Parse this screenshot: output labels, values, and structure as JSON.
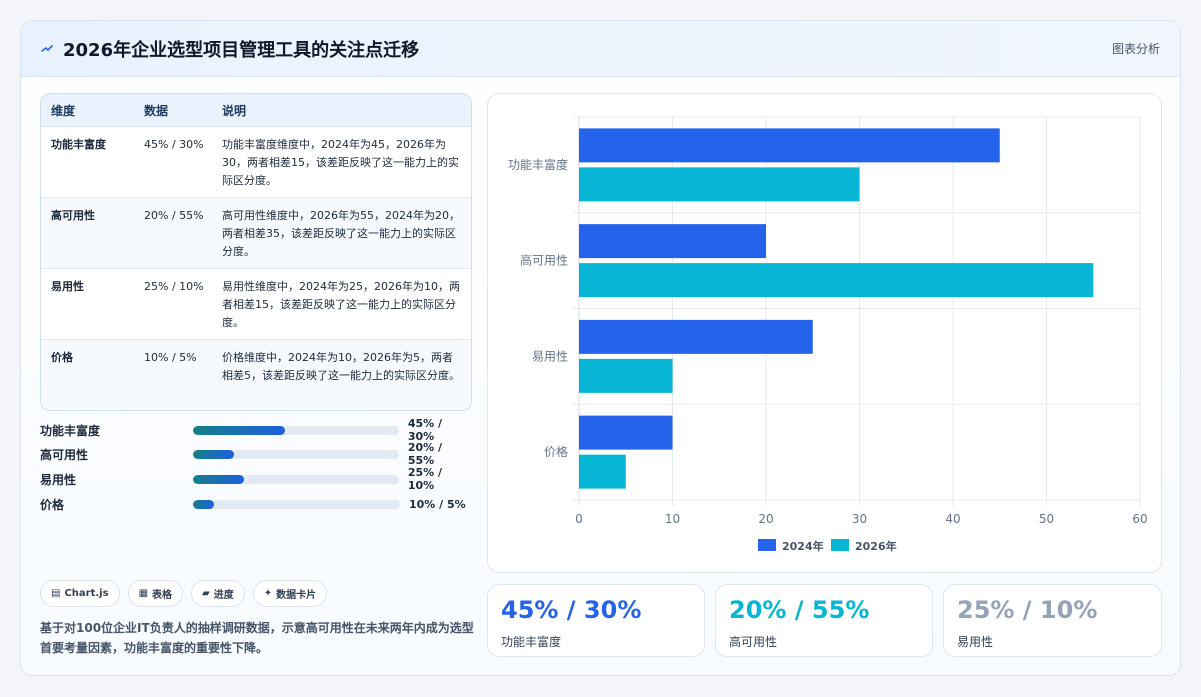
{
  "header": {
    "title": "2026年企业选型项目管理工具的关注点迁移",
    "tag": "图表分析",
    "icon": "trend-line-icon"
  },
  "table": {
    "columns": [
      "维度",
      "数据",
      "说明"
    ],
    "rows": [
      {
        "dim": "功能丰富度",
        "data": "45% / 30%",
        "desc": "功能丰富度维度中，2024年为45，2026年为30，两者相差15，该差距反映了这一能力上的实际区分度。"
      },
      {
        "dim": "高可用性",
        "data": "20% / 55%",
        "desc": "高可用性维度中，2026年为55，2024年为20，两者相差35，该差距反映了这一能力上的实际区分度。"
      },
      {
        "dim": "易用性",
        "data": "25% / 10%",
        "desc": "易用性维度中，2024年为25，2026年为10，两者相差15，该差距反映了这一能力上的实际区分度。"
      },
      {
        "dim": "价格",
        "data": "10% / 5%",
        "desc": "价格维度中，2024年为10，2026年为5，两者相差5，该差距反映了这一能力上的实际区分度。"
      }
    ]
  },
  "progress": [
    {
      "label": "功能丰富度",
      "value_text": "45% / 30%",
      "fill": 0.45
    },
    {
      "label": "高可用性",
      "value_text": "20% / 55%",
      "fill": 0.2
    },
    {
      "label": "易用性",
      "value_text": "25% / 10%",
      "fill": 0.25
    },
    {
      "label": "价格",
      "value_text": "10% / 5%",
      "fill": 0.1
    }
  ],
  "chips": [
    "Chart.js",
    "表格",
    "进度",
    "数据卡片"
  ],
  "note": "基于对100位企业IT负责人的抽样调研数据，示意高可用性在未来两年内成为选型首要考量因素，功能丰富度的重要性下降。",
  "kpis": [
    {
      "value": "45% / 30%",
      "label": "功能丰富度",
      "color": "#2563eb"
    },
    {
      "value": "20% / 55%",
      "label": "高可用性",
      "color": "#06b6d4"
    },
    {
      "value": "25% / 10%",
      "label": "易用性",
      "color": "#94a3b8"
    }
  ],
  "chart_data": {
    "type": "bar",
    "orientation": "horizontal",
    "categories": [
      "功能丰富度",
      "高可用性",
      "易用性",
      "价格"
    ],
    "series": [
      {
        "name": "2024年",
        "values": [
          45,
          20,
          25,
          10
        ],
        "color": "#2563eb"
      },
      {
        "name": "2026年",
        "values": [
          30,
          55,
          10,
          5
        ],
        "color": "#06b6d4"
      }
    ],
    "xlim": [
      0,
      60
    ],
    "xticks": [
      "0",
      "10",
      "20",
      "30",
      "40",
      "50",
      "60"
    ],
    "grid": true,
    "legend": "bottom"
  }
}
